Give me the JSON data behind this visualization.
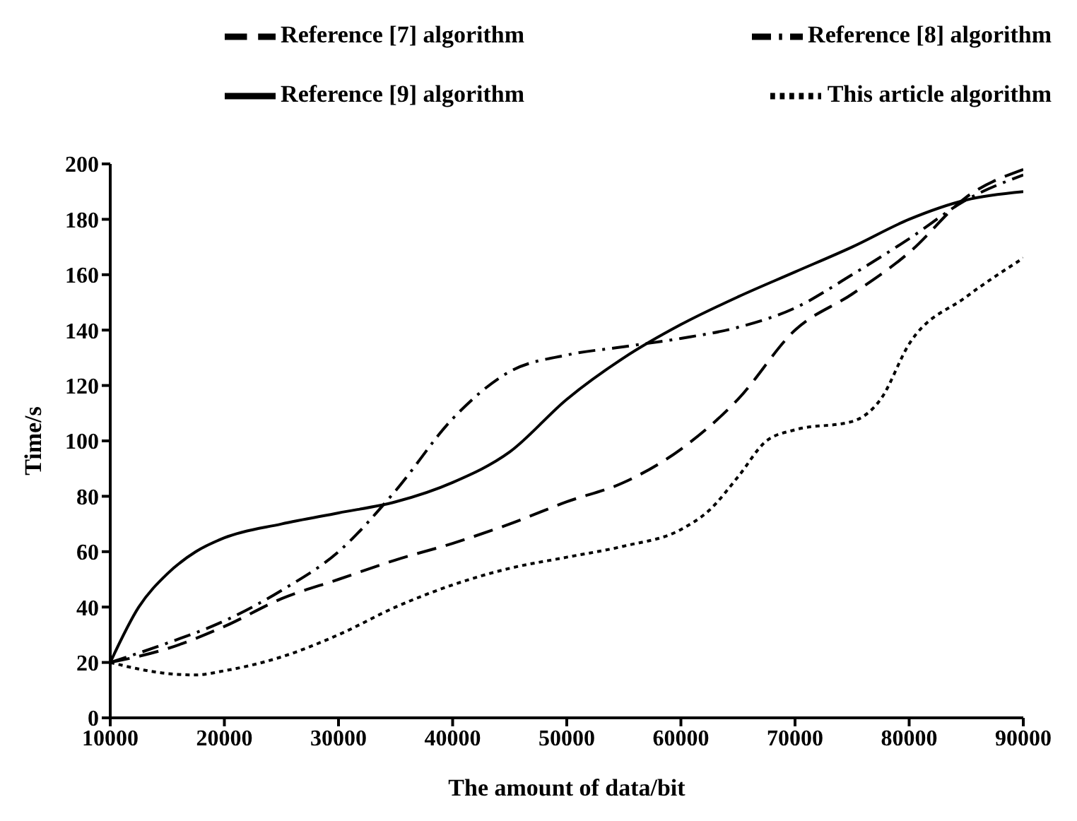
{
  "chart_data": {
    "type": "line",
    "xlabel": "The amount of data/bit",
    "ylabel": "Time/s",
    "xlim": [
      10000,
      90000
    ],
    "xticks": [
      10000,
      20000,
      30000,
      40000,
      50000,
      60000,
      70000,
      80000,
      90000
    ],
    "ylim": [
      0,
      200
    ],
    "yticks": [
      0,
      20,
      40,
      60,
      80,
      100,
      120,
      140,
      160,
      180,
      200
    ],
    "grid": false,
    "legend": "top",
    "marker": "none",
    "x": [
      10000,
      15000,
      20000,
      25000,
      30000,
      35000,
      40000,
      45000,
      50000,
      55000,
      60000,
      65000,
      70000,
      75000,
      80000,
      85000,
      90000
    ],
    "series": [
      {
        "name": "Reference [7] algorithm",
        "color": "#000000",
        "line_style": "dashed",
        "values": [
          20,
          25,
          33,
          43,
          50,
          57,
          63,
          70,
          78,
          85,
          97,
          115,
          140,
          153,
          168,
          188,
          198
        ]
      },
      {
        "name": "Reference [8] algorithm",
        "color": "#000000",
        "line_style": "dashdot",
        "values": [
          20,
          27,
          35,
          46,
          60,
          82,
          108,
          125,
          131,
          134,
          137,
          141,
          148,
          160,
          173,
          187,
          196
        ]
      },
      {
        "name": "This article  algorithm",
        "color": "#000000",
        "line_style": "dotted",
        "x": [
          10000,
          15000,
          17500,
          20000,
          25000,
          30000,
          35000,
          40000,
          45000,
          50000,
          55000,
          60000,
          62500,
          65000,
          67500,
          70000,
          75000,
          77500,
          80000,
          85000,
          90000
        ],
        "values": [
          20,
          16,
          15.5,
          17,
          22,
          30,
          40,
          48,
          54,
          58,
          62,
          68,
          75,
          87,
          100,
          104,
          107,
          115,
          135,
          152,
          166
        ]
      },
      {
        "name": "Reference [9] algorithm",
        "color": "#000000",
        "line_style": "solid",
        "x": [
          10000,
          12500,
          15000,
          17500,
          20000,
          25000,
          30000,
          35000,
          40000,
          45000,
          50000,
          55000,
          60000,
          65000,
          70000,
          75000,
          80000,
          85000,
          90000
        ],
        "values": [
          20,
          40,
          52,
          60,
          65,
          70,
          74,
          78,
          85,
          96,
          115,
          130,
          142,
          152,
          161,
          170,
          180,
          187,
          190
        ]
      }
    ]
  }
}
